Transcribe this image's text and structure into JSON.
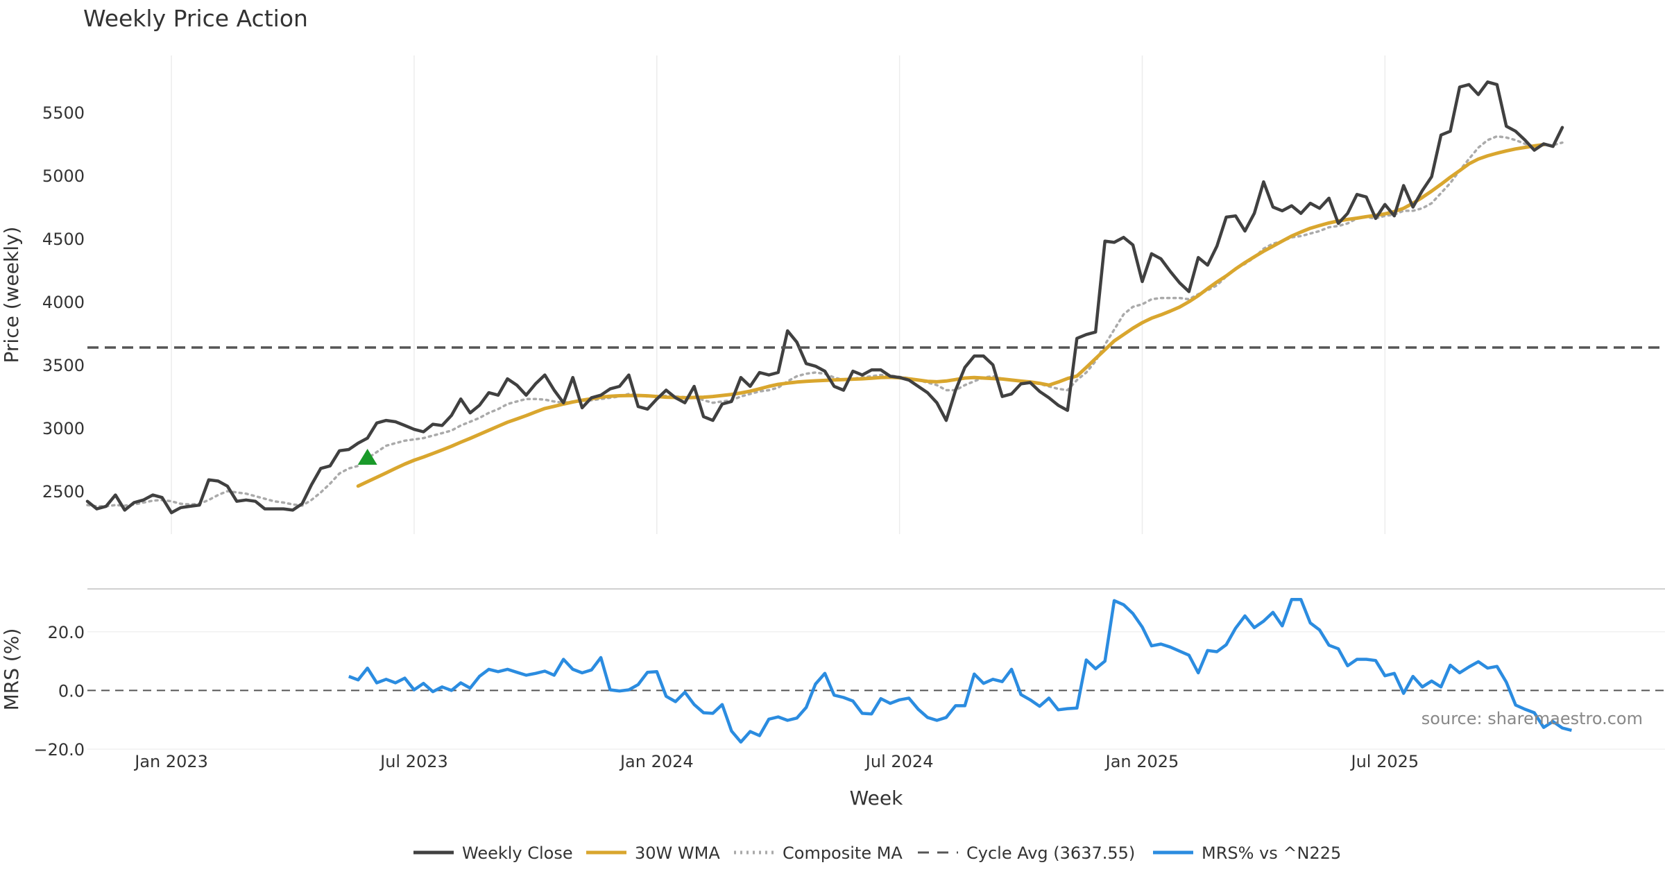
{
  "chart_data": {
    "type": "line",
    "title": "Weekly Price Action",
    "xlabel": "Week",
    "x_tick_labels": [
      "Jan 2023",
      "Jul 2023",
      "Jan 2024",
      "Jul 2024",
      "Jan 2025",
      "Jul 2025"
    ],
    "x_tick_weeks": [
      12,
      38,
      64,
      90,
      116,
      142
    ],
    "x_range": [
      3,
      172
    ],
    "grid": true,
    "legend_position": "bottom-center",
    "source_text": "source: sharemaestro.com",
    "price_panel": {
      "ylabel": "Price (weekly)",
      "ylim": [
        2160,
        5950
      ],
      "y_ticks": [
        2500,
        3000,
        3500,
        4000,
        4500,
        5000,
        5500
      ],
      "y_tick_labels": [
        "2500",
        "3000",
        "3500",
        "4000",
        "4500",
        "5000",
        "5500"
      ],
      "cycle_avg": 3637.55,
      "signal_marker": {
        "week": 33,
        "value": 2770,
        "label": "buy-signal"
      },
      "series": [
        {
          "name": "Weekly Close",
          "color": "#404040",
          "start_week": 3,
          "values": [
            2420,
            2360,
            2380,
            2470,
            2350,
            2410,
            2430,
            2470,
            2450,
            2330,
            2370,
            2380,
            2390,
            2590,
            2580,
            2540,
            2420,
            2430,
            2420,
            2360,
            2360,
            2360,
            2350,
            2400,
            2550,
            2680,
            2700,
            2820,
            2830,
            2880,
            2920,
            3040,
            3060,
            3050,
            3020,
            2990,
            2970,
            3030,
            3020,
            3100,
            3230,
            3120,
            3180,
            3280,
            3260,
            3390,
            3340,
            3260,
            3350,
            3420,
            3300,
            3200,
            3400,
            3160,
            3240,
            3260,
            3310,
            3330,
            3420,
            3170,
            3150,
            3230,
            3300,
            3240,
            3200,
            3330,
            3090,
            3060,
            3190,
            3210,
            3400,
            3330,
            3440,
            3420,
            3440,
            3770,
            3680,
            3510,
            3490,
            3450,
            3330,
            3300,
            3450,
            3420,
            3460,
            3460,
            3410,
            3400,
            3380,
            3330,
            3280,
            3200,
            3060,
            3300,
            3480,
            3570,
            3570,
            3500,
            3250,
            3270,
            3350,
            3360,
            3290,
            3240,
            3180,
            3140,
            3710,
            3740,
            3760,
            4480,
            4470,
            4510,
            4450,
            4160,
            4380,
            4340,
            4240,
            4150,
            4080,
            4350,
            4290,
            4440,
            4670,
            4680,
            4560,
            4700,
            4950,
            4750,
            4720,
            4760,
            4700,
            4780,
            4740,
            4820,
            4620,
            4700,
            4850,
            4830,
            4660,
            4770,
            4680,
            4920,
            4750,
            4880,
            4990,
            5320,
            5350,
            5700,
            5720,
            5640,
            5740,
            5720,
            5390,
            5350,
            5280,
            5200,
            5250,
            5230,
            5380
          ]
        },
        {
          "name": "30W WMA",
          "color": "#D9A62E",
          "start_week": 32,
          "values": [
            2540,
            2575,
            2610,
            2645,
            2680,
            2715,
            2745,
            2770,
            2798,
            2826,
            2856,
            2888,
            2918,
            2950,
            2982,
            3014,
            3046,
            3072,
            3098,
            3127,
            3155,
            3172,
            3190,
            3206,
            3220,
            3232,
            3245,
            3252,
            3256,
            3257,
            3258,
            3255,
            3250,
            3244,
            3242,
            3240,
            3242,
            3244,
            3250,
            3258,
            3266,
            3278,
            3292,
            3310,
            3330,
            3346,
            3356,
            3364,
            3370,
            3374,
            3377,
            3381,
            3384,
            3387,
            3390,
            3394,
            3400,
            3402,
            3398,
            3390,
            3380,
            3370,
            3366,
            3372,
            3384,
            3396,
            3400,
            3396,
            3392,
            3388,
            3380,
            3372,
            3365,
            3354,
            3340,
            3364,
            3392,
            3412,
            3480,
            3550,
            3620,
            3690,
            3740,
            3790,
            3834,
            3870,
            3896,
            3926,
            3958,
            4000,
            4048,
            4104,
            4156,
            4205,
            4260,
            4310,
            4356,
            4400,
            4440,
            4480,
            4520,
            4552,
            4582,
            4604,
            4624,
            4640,
            4652,
            4662,
            4674,
            4684,
            4696,
            4714,
            4740,
            4780,
            4826,
            4876,
            4930,
            4986,
            5038,
            5092,
            5130,
            5156,
            5176,
            5194,
            5210,
            5222,
            5234,
            5244
          ]
        },
        {
          "name": "Composite MA",
          "color": "#AAAAAA",
          "start_week": 3,
          "values": [
            2390,
            2380,
            2380,
            2390,
            2385,
            2395,
            2410,
            2425,
            2430,
            2420,
            2400,
            2395,
            2400,
            2430,
            2470,
            2500,
            2490,
            2480,
            2460,
            2440,
            2420,
            2410,
            2395,
            2385,
            2430,
            2490,
            2560,
            2640,
            2680,
            2700,
            2760,
            2810,
            2860,
            2880,
            2900,
            2910,
            2920,
            2940,
            2960,
            2980,
            3020,
            3050,
            3080,
            3120,
            3150,
            3190,
            3210,
            3230,
            3230,
            3225,
            3210,
            3200,
            3210,
            3215,
            3220,
            3230,
            3240,
            3250,
            3270,
            3260,
            3250,
            3250,
            3255,
            3250,
            3245,
            3250,
            3220,
            3200,
            3210,
            3220,
            3250,
            3270,
            3290,
            3300,
            3320,
            3370,
            3410,
            3430,
            3440,
            3430,
            3400,
            3380,
            3390,
            3400,
            3410,
            3420,
            3415,
            3405,
            3395,
            3380,
            3360,
            3340,
            3300,
            3300,
            3340,
            3370,
            3400,
            3410,
            3390,
            3380,
            3370,
            3360,
            3350,
            3330,
            3310,
            3300,
            3380,
            3440,
            3530,
            3660,
            3780,
            3900,
            3960,
            3980,
            4020,
            4030,
            4030,
            4030,
            4020,
            4060,
            4090,
            4130,
            4200,
            4260,
            4300,
            4350,
            4420,
            4460,
            4480,
            4510,
            4520,
            4540,
            4560,
            4590,
            4600,
            4620,
            4660,
            4670,
            4660,
            4680,
            4690,
            4720,
            4720,
            4740,
            4780,
            4860,
            4940,
            5040,
            5130,
            5220,
            5280,
            5310,
            5300,
            5280,
            5250,
            5230,
            5240,
            5240,
            5260
          ]
        }
      ]
    },
    "mrs_panel": {
      "ylabel": "MRS (%)",
      "ylim": [
        -20,
        32
      ],
      "y_ticks": [
        20.0,
        0.0,
        -20.0
      ],
      "y_tick_labels": [
        "20.0",
        "0.0",
        "−20.0"
      ],
      "zero_line": 0,
      "series": [
        {
          "name": "MRS% vs ^N225",
          "color": "#2B8CE0",
          "start_week": 31,
          "values": [
            4.8,
            3.6,
            7.6,
            2.6,
            3.8,
            2.6,
            4.2,
            0.2,
            2.4,
            -0.4,
            1.2,
            0,
            2.6,
            0.8,
            4.8,
            7.2,
            6.4,
            7.2,
            6.2,
            5.2,
            5.8,
            6.6,
            5.2,
            10.6,
            7.2,
            6,
            7,
            11.2,
            0.2,
            -0.2,
            0.2,
            2,
            6.2,
            6.4,
            -2,
            -3.8,
            -0.6,
            -4.8,
            -7.6,
            -7.8,
            -4.8,
            -13.8,
            -17.6,
            -14,
            -15.4,
            -9.8,
            -9,
            -10.2,
            -9.4,
            -5.8,
            2.2,
            5.8,
            -1.6,
            -2.4,
            -3.6,
            -7.8,
            -8,
            -2.8,
            -4.4,
            -3.2,
            -2.6,
            -6.4,
            -9.2,
            -10.2,
            -9.2,
            -5.2,
            -5.2,
            5.6,
            2.4,
            3.8,
            3,
            7.2,
            -1.4,
            -3.2,
            -5.4,
            -2.6,
            -6.6,
            -6.2,
            -6,
            10.4,
            7.4,
            10,
            30.6,
            29.2,
            26.2,
            21.6,
            15.2,
            15.8,
            14.8,
            13.4,
            12,
            6,
            13.6,
            13.2,
            15.6,
            21.2,
            25.4,
            21.4,
            23.6,
            26.6,
            22,
            31,
            31,
            23,
            20.6,
            15.4,
            14.2,
            8.4,
            10.6,
            10.6,
            10.2,
            5,
            5.8,
            -1,
            4.8,
            1.2,
            3.2,
            1.2,
            8.6,
            6,
            8,
            9.8,
            7.6,
            8.2,
            2.8,
            -5,
            -6.4,
            -7.6,
            -12.6,
            -10.6,
            -12.8,
            -13.6
          ]
        }
      ]
    },
    "legend": [
      {
        "label": "Weekly Close",
        "color": "#404040",
        "style": "solid"
      },
      {
        "label": "30W WMA",
        "color": "#D9A62E",
        "style": "solid"
      },
      {
        "label": "Composite MA",
        "color": "#AAAAAA",
        "style": "dotted"
      },
      {
        "label": "Cycle Avg (3637.55)",
        "color": "#555555",
        "style": "dashed"
      },
      {
        "label": "MRS% vs ^N225",
        "color": "#2B8CE0",
        "style": "solid"
      }
    ]
  }
}
